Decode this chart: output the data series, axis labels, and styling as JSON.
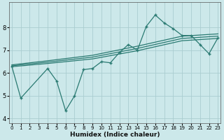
{
  "xlabel": "Humidex (Indice chaleur)",
  "bg_color": "#cce8ea",
  "grid_color": "#aacdd0",
  "line_color": "#2a7a72",
  "xlim": [
    -0.3,
    23.3
  ],
  "ylim": [
    3.8,
    9.1
  ],
  "yticks": [
    4,
    5,
    6,
    7,
    8
  ],
  "xticks": [
    0,
    1,
    2,
    3,
    4,
    5,
    6,
    7,
    8,
    9,
    10,
    11,
    12,
    13,
    14,
    15,
    16,
    17,
    18,
    19,
    20,
    21,
    22,
    23
  ],
  "main_x": [
    0,
    1,
    4,
    5,
    6,
    7,
    8,
    9,
    10,
    11,
    12,
    13,
    14,
    15,
    16,
    17,
    18,
    19,
    20,
    21,
    22,
    23
  ],
  "main_y": [
    6.3,
    4.9,
    6.2,
    5.65,
    4.35,
    5.0,
    6.15,
    6.2,
    6.5,
    6.45,
    6.9,
    7.25,
    7.0,
    8.05,
    8.55,
    8.2,
    7.95,
    7.65,
    7.65,
    7.25,
    6.85,
    7.55
  ],
  "trend1_x": [
    0,
    4,
    9,
    14,
    19,
    23
  ],
  "trend1_y": [
    6.28,
    6.42,
    6.62,
    6.98,
    7.42,
    7.52
  ],
  "trend2_x": [
    0,
    4,
    9,
    14,
    19,
    23
  ],
  "trend2_y": [
    6.32,
    6.48,
    6.7,
    7.08,
    7.52,
    7.62
  ],
  "trend3_x": [
    0,
    4,
    9,
    14,
    19,
    23
  ],
  "trend3_y": [
    6.36,
    6.54,
    6.78,
    7.18,
    7.62,
    7.72
  ]
}
